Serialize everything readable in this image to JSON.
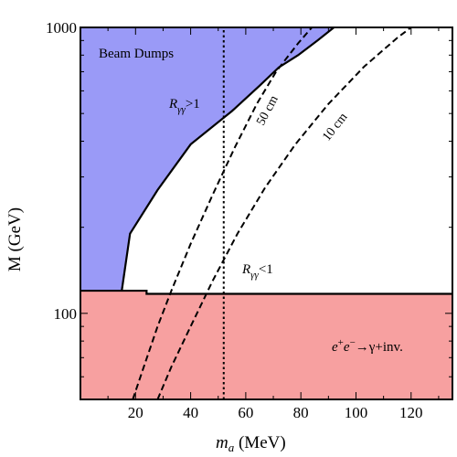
{
  "chart_data": {
    "type": "area",
    "xlabel": "m_a (MeV)",
    "ylabel": "M (GeV)",
    "xlim": [
      0,
      135
    ],
    "ylim": [
      50,
      1000
    ],
    "y_scale": "log",
    "x_ticks": [
      20,
      40,
      60,
      80,
      100,
      120
    ],
    "y_ticks": [
      100,
      1000
    ],
    "regions": [
      {
        "label": "Beam Dumps",
        "color": "#9a9af7",
        "boundary": [
          [
            15,
            120
          ],
          [
            18,
            190
          ],
          [
            28,
            270
          ],
          [
            40,
            390
          ],
          [
            55,
            510
          ],
          [
            65,
            625
          ],
          [
            72,
            725
          ],
          [
            79,
            800
          ],
          [
            86,
            900
          ],
          [
            92,
            1000
          ]
        ]
      },
      {
        "label": "e⁺e⁻→γ+inv.",
        "color": "#f7a0a0",
        "boundary_y": 120,
        "step": [
          [
            0,
            120
          ],
          [
            24,
            120
          ],
          [
            24,
            117
          ],
          [
            135,
            117
          ]
        ]
      }
    ],
    "curves": [
      {
        "label": "50 cm",
        "style": "dashed",
        "points": [
          [
            19,
            50
          ],
          [
            23,
            65
          ],
          [
            28,
            90
          ],
          [
            33,
            120
          ],
          [
            40,
            175
          ],
          [
            48,
            260
          ],
          [
            56,
            380
          ],
          [
            64,
            540
          ],
          [
            71,
            700
          ],
          [
            79,
            880
          ],
          [
            84,
            1000
          ]
        ]
      },
      {
        "label": "10 cm",
        "style": "dashed",
        "points": [
          [
            28,
            50
          ],
          [
            33,
            65
          ],
          [
            40,
            90
          ],
          [
            48,
            130
          ],
          [
            57,
            190
          ],
          [
            67,
            275
          ],
          [
            78,
            390
          ],
          [
            90,
            540
          ],
          [
            103,
            730
          ],
          [
            115,
            920
          ],
          [
            120,
            1000
          ]
        ]
      },
      {
        "label": "",
        "style": "dotted",
        "points": [
          [
            52,
            50
          ],
          [
            52,
            1000
          ]
        ]
      }
    ],
    "annotations": {
      "beam_dumps": "Beam Dumps",
      "r_gt_main": "R",
      "r_gt_sub": "γγ",
      "r_gt_tail": ">1",
      "r_lt_main": "R",
      "r_lt_sub": "γγ",
      "r_lt_tail": "<1",
      "cm50": "50 cm",
      "cm10": "10 cm",
      "ee_e1": "e",
      "ee_plus": "+",
      "ee_e2": "e",
      "ee_minus": "−",
      "ee_tail": "→γ+inv."
    },
    "axis_titles": {
      "x_main": "m",
      "x_sub": "a",
      "x_tail": " (MeV)",
      "y": "M (GeV)"
    },
    "colors": {
      "beam_dumps": "#9a9af7",
      "collider": "#f7a0a0"
    }
  }
}
